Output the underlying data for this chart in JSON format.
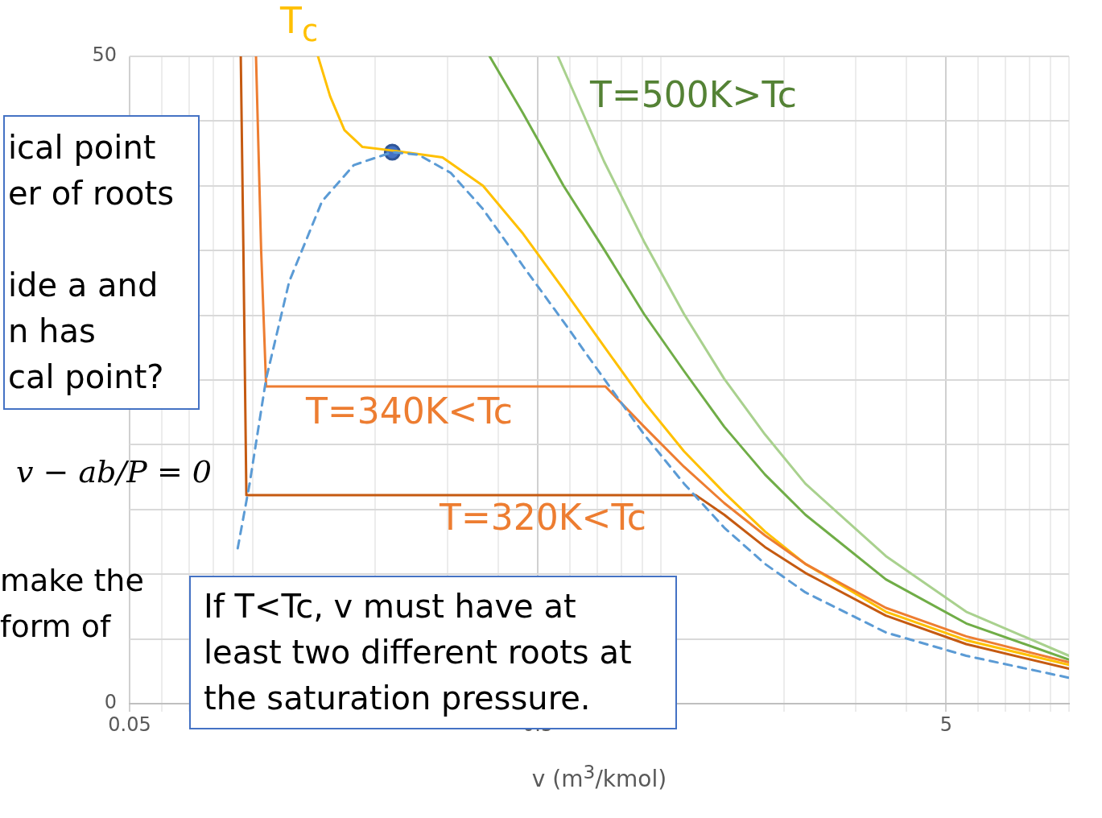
{
  "chart_data": {
    "type": "line",
    "xlabel": "v (m$^{3}$/kmol)",
    "log": "x",
    "xlim": [
      0.05,
      10
    ],
    "ylim": [
      0,
      50
    ],
    "xticks": [
      0.05,
      {
        "value": 0.06,
        "label": null
      },
      {
        "value": 0.07,
        "label": null
      },
      {
        "value": 0.08,
        "label": null
      },
      {
        "value": 0.09,
        "label": null
      },
      {
        "value": 0.1,
        "label": null
      },
      {
        "value": 0.2,
        "label": null
      },
      {
        "value": 0.3,
        "label": null
      },
      {
        "value": 0.4,
        "label": null
      },
      0.5,
      {
        "value": 0.6,
        "label": null
      },
      {
        "value": 0.7,
        "label": null
      },
      {
        "value": 0.8,
        "label": null
      },
      {
        "value": 0.9,
        "label": null
      },
      {
        "value": 1,
        "label": null
      },
      {
        "value": 2,
        "label": null
      },
      {
        "value": 3,
        "label": null
      },
      {
        "value": 4,
        "label": null
      },
      5,
      {
        "value": 6,
        "label": null
      },
      {
        "value": 7,
        "label": null
      },
      {
        "value": 8,
        "label": null
      },
      {
        "value": 9,
        "label": null
      },
      {
        "value": 10,
        "label": null
      }
    ],
    "yticks": [
      0,
      {
        "value": 5,
        "label": null
      },
      {
        "value": 10,
        "label": null
      },
      {
        "value": 15,
        "label": null
      },
      {
        "value": 20,
        "label": null
      },
      {
        "value": 25,
        "label": null
      },
      {
        "value": 30,
        "label": null
      },
      {
        "value": 35,
        "label": null
      },
      {
        "value": 40,
        "label": null
      },
      {
        "value": 45,
        "label": null
      },
      50
    ],
    "grid": true,
    "legend": false,
    "marker": "none",
    "series": [
      {
        "color": "#5b9bd5",
        "line_style": "dashed",
        "x": [
          0.092,
          0.0984,
          0.108,
          0.123,
          0.148,
          0.177,
          0.22,
          0.255,
          0.306,
          0.367,
          0.46,
          0.578,
          0.726,
          0.91,
          1.14,
          1.43,
          1.8,
          2.26,
          3.56,
          5.6,
          10
        ],
        "values": [
          12,
          17,
          25.1,
          32.6,
          38.8,
          41.6,
          42.6,
          42.4,
          41,
          38.2,
          33.8,
          29.5,
          25.1,
          20.8,
          17,
          13.6,
          10.8,
          8.6,
          5.5,
          3.7,
          2
        ]
      },
      {
        "color": "#c55a11",
        "x": [
          0.0936,
          0.095,
          0.0966,
          1.22,
          1.43,
          1.8,
          2.26,
          3.56,
          5.6,
          10
        ],
        "values": [
          50,
          35,
          16.1,
          16.1,
          14.6,
          12.1,
          10.1,
          6.8,
          4.6,
          2.7
        ]
      },
      {
        "color": "#ed7d31",
        "x": [
          0.102,
          0.105,
          0.108,
          0.732,
          0.91,
          1.14,
          1.43,
          1.8,
          2.26,
          3.56,
          5.6,
          10
        ],
        "values": [
          50,
          35,
          24.5,
          24.5,
          21.4,
          18.3,
          15.5,
          13,
          10.8,
          7.4,
          5.2,
          3.2
        ]
      },
      {
        "color": "#ffc000",
        "x": [
          0.1447,
          0.155,
          0.168,
          0.186,
          0.223,
          0.292,
          0.367,
          0.46,
          0.578,
          0.726,
          0.91,
          1.14,
          1.43,
          1.8,
          2.26,
          3.56,
          5.6,
          10
        ],
        "values": [
          50,
          46.9,
          44.3,
          43,
          42.7,
          42.2,
          40,
          36.3,
          32,
          27.6,
          23.3,
          19.5,
          16.3,
          13.3,
          10.8,
          7.1,
          4.9,
          3
        ]
      },
      {
        "color": "#70ad47",
        "x": [
          0.381,
          0.46,
          0.578,
          0.726,
          0.91,
          1.14,
          1.43,
          1.8,
          2.26,
          3.56,
          5.6,
          10
        ],
        "values": [
          50,
          45.6,
          40,
          35.1,
          30.1,
          25.7,
          21.4,
          17.7,
          14.6,
          9.6,
          6.2,
          3.4
        ]
      },
      {
        "color": "#a9d18e",
        "x": [
          0.56,
          0.726,
          0.91,
          1.14,
          1.43,
          1.8,
          2.26,
          3.56,
          5.6,
          10
        ],
        "values": [
          50,
          41.9,
          35.7,
          30.1,
          25.1,
          20.8,
          17,
          11.4,
          7.1,
          3.7
        ]
      },
      {
        "type": "scatter",
        "color": "#2f5597",
        "marker": "circle",
        "x": [
          0.22
        ],
        "values": [
          42.6
        ]
      }
    ],
    "annotations": [
      "T$_{c}$",
      "T=500K>Tc",
      "T=340K<Tc",
      "T=320K<Tc",
      "ical point",
      "er of roots",
      "ide a and",
      "n has",
      "cal point?",
      "v − ab/P = 0",
      "make the",
      "form of",
      "If T<Tc, v must have at least two different roots at the saturation pressure."
    ]
  }
}
